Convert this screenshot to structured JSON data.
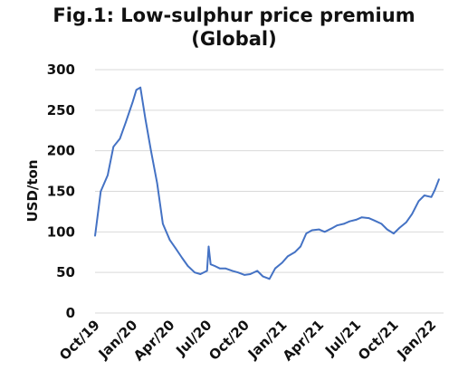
{
  "chart_data": {
    "type": "line",
    "title_line1": "Fig.1: Low-sulphur  price premium",
    "title_line2": "(Global)",
    "xlabel": "",
    "ylabel": "USD/ton",
    "ylim": [
      0,
      300
    ],
    "yticks": [
      0,
      50,
      100,
      150,
      200,
      250,
      300
    ],
    "xlim": [
      "2019-10",
      "2022-01"
    ],
    "xticks": [
      "Oct/19",
      "Jan/20",
      "Apr/20",
      "Jul/20",
      "Oct/20",
      "Jan/21",
      "Apr/21",
      "Jul/21",
      "Oct/21",
      "Jan/22"
    ],
    "grid": true,
    "color": "#4472C4",
    "series": [
      {
        "x": [
          "2019-10-01",
          "2019-10-15",
          "2019-11-01",
          "2019-11-15",
          "2019-12-01",
          "2019-12-15",
          "2020-01-01",
          "2020-01-10",
          "2020-01-20",
          "2020-02-01",
          "2020-02-15",
          "2020-03-01",
          "2020-03-15",
          "2020-04-01",
          "2020-04-15",
          "2020-05-01",
          "2020-05-15",
          "2020-06-01",
          "2020-06-15",
          "2020-07-01",
          "2020-07-05",
          "2020-07-10",
          "2020-07-20",
          "2020-08-01",
          "2020-08-15",
          "2020-09-01",
          "2020-09-15",
          "2020-10-01",
          "2020-10-15",
          "2020-11-01",
          "2020-11-15",
          "2020-12-01",
          "2020-12-15",
          "2021-01-01",
          "2021-01-15",
          "2021-02-01",
          "2021-02-15",
          "2021-03-01",
          "2021-03-15",
          "2021-04-01",
          "2021-04-15",
          "2021-05-01",
          "2021-05-15",
          "2021-06-01",
          "2021-06-15",
          "2021-07-01",
          "2021-07-15",
          "2021-08-01",
          "2021-08-15",
          "2021-09-01",
          "2021-09-15",
          "2021-10-01",
          "2021-10-15",
          "2021-11-01",
          "2021-11-15",
          "2021-12-01",
          "2021-12-15",
          "2022-01-01",
          "2022-01-10",
          "2022-01-20"
        ],
        "y": [
          95,
          150,
          170,
          205,
          215,
          235,
          260,
          275,
          278,
          240,
          200,
          160,
          110,
          90,
          80,
          68,
          58,
          50,
          48,
          52,
          82,
          60,
          58,
          55,
          55,
          52,
          50,
          47,
          48,
          52,
          45,
          42,
          55,
          62,
          70,
          75,
          82,
          98,
          102,
          103,
          100,
          104,
          108,
          110,
          113,
          115,
          118,
          117,
          114,
          110,
          103,
          98,
          105,
          112,
          122,
          138,
          145,
          143,
          152,
          165
        ]
      }
    ]
  }
}
